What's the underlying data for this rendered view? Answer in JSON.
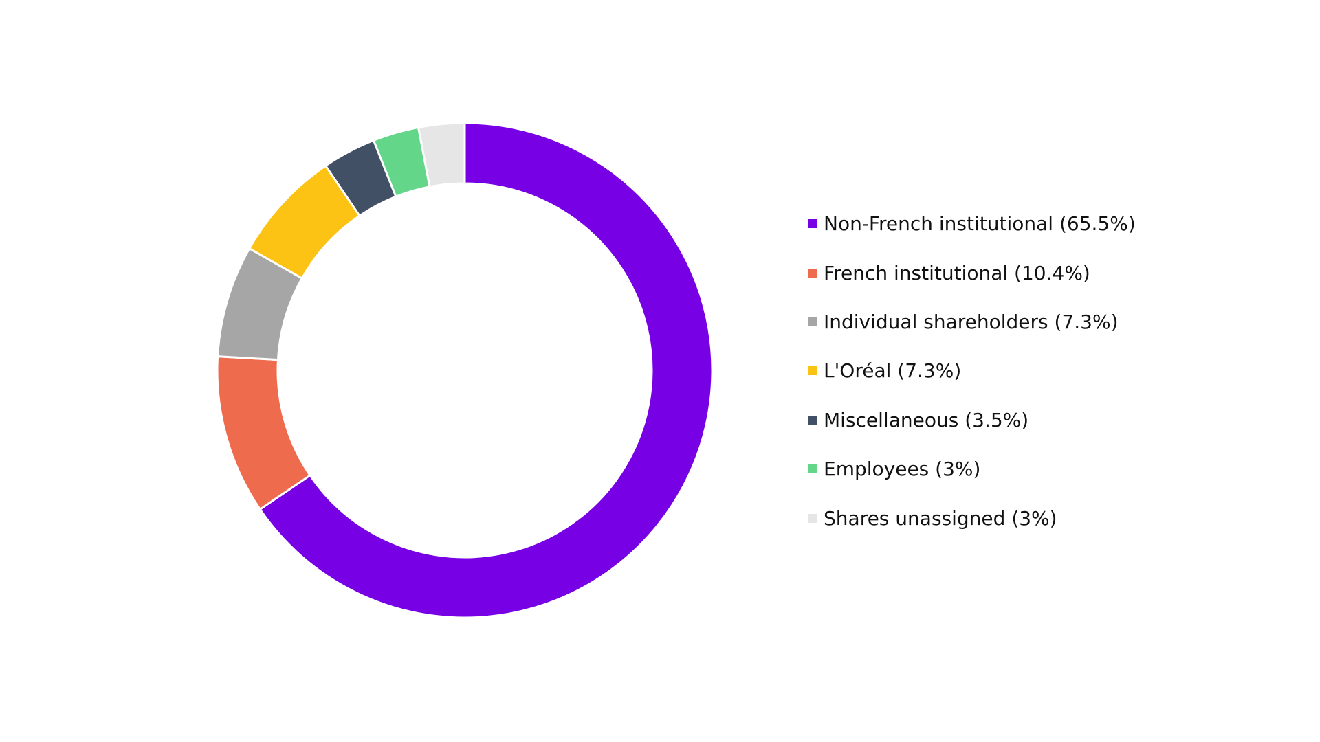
{
  "chart_data": {
    "type": "pie",
    "donut": true,
    "start": "top",
    "direction": "clockwise",
    "legend_placement": "right",
    "slices": [
      {
        "label": "Non-French institutional (65.5%)",
        "value": 65.5,
        "color": "#7800E4"
      },
      {
        "label": "French institutional (10.4%)",
        "value": 10.4,
        "color": "#EE6C4D"
      },
      {
        "label": "Individual shareholders (7.3%)",
        "value": 7.3,
        "color": "#A6A6A6"
      },
      {
        "label": "L'Oréal (7.3%)",
        "value": 7.3,
        "color": "#FCC214"
      },
      {
        "label": "Miscellaneous (3.5%)",
        "value": 3.5,
        "color": "#425066"
      },
      {
        "label": "Employees (3%)",
        "value": 3,
        "color": "#63D68A"
      },
      {
        "label": "Shares unassigned (3%)",
        "value": 3,
        "color": "#E6E6E6"
      }
    ]
  }
}
